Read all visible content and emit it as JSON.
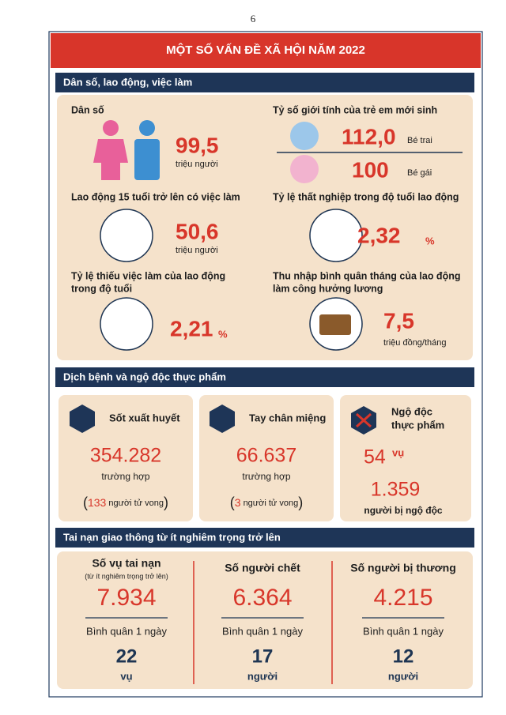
{
  "page_number": "6",
  "title": "MỘT SỐ VẤN ĐỀ XÃ HỘI NĂM 2022",
  "population_section": {
    "heading": "Dân số, lao động, việc làm",
    "population": {
      "label": "Dân số",
      "value": "99,5",
      "unit": "triệu người"
    },
    "sex_ratio": {
      "label": "Tỷ số giới tính của trẻ em mới sinh",
      "boys_value": "112,0",
      "boys_label": "Bé trai",
      "girls_value": "100",
      "girls_label": "Bé gái"
    },
    "employed": {
      "label": "Lao động 15 tuổi trở lên có việc làm",
      "value": "50,6",
      "unit": "triệu người"
    },
    "unemployment": {
      "label": "Tỷ lệ thất nghiệp trong độ tuổi lao động",
      "value": "2,32",
      "unit": "%"
    },
    "underemployment": {
      "label_lines": [
        "Tỷ lệ thiếu việc làm của lao động",
        "trong độ tuổi"
      ],
      "value": "2,21",
      "unit": "%"
    },
    "income": {
      "label_lines": [
        "Thu nhập bình quân tháng của lao động",
        "làm công hưởng lương"
      ],
      "value": "7,5",
      "unit": "triệu đồng/tháng"
    }
  },
  "disease_section": {
    "heading": "Dịch bệnh và ngộ độc thực phẩm",
    "dengue": {
      "name": "Sốt xuất huyết",
      "value": "354.282",
      "unit": "trường hợp",
      "deaths_parts": [
        "(",
        "133",
        "người tử vong",
        ")"
      ]
    },
    "hfmd": {
      "name": "Tay chân miệng",
      "value": "66.637",
      "unit": "trường hợp",
      "deaths_parts": [
        "(",
        "3",
        "người tử vong",
        ")"
      ]
    },
    "food_poisoning": {
      "name_lines": [
        "Ngộ độc",
        "thực phẩm"
      ],
      "cases": "54",
      "cases_unit": "vụ",
      "victims": "1.359",
      "victims_label": "người bị ngộ độc"
    }
  },
  "traffic_section": {
    "heading": "Tai nạn giao thông từ ít nghiêm trọng trở lên",
    "columns": [
      {
        "heading": "Số vụ tai nạn",
        "note": "(từ ít nghiêm trọng trở lên)",
        "value": "7.934",
        "daily_label": "Bình quân 1 ngày",
        "daily_value": "22",
        "daily_unit": "vụ"
      },
      {
        "heading": "Số người chết",
        "value": "6.364",
        "daily_label": "Bình quân 1 ngày",
        "daily_value": "17",
        "daily_unit": "người"
      },
      {
        "heading": "Số người bị thương",
        "value": "4.215",
        "daily_label": "Bình quân 1 ngày",
        "daily_value": "12",
        "daily_unit": "người"
      }
    ]
  }
}
